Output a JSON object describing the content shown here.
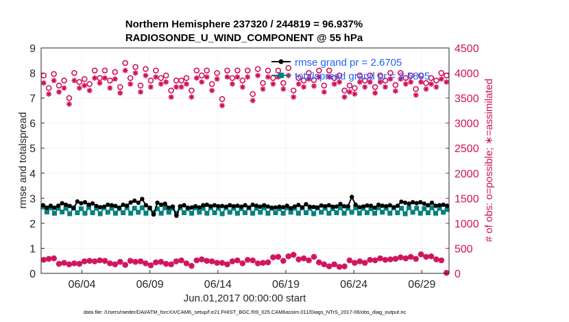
{
  "chart_data": {
    "type": "line",
    "title_line1": "Northern Hemisphere 237320 / 244819 = 96.937%",
    "title_line2": "RADIOSONDE_U_WIND_COMPONENT @ 55 hPa",
    "ylabel_left": "rmse and totalspread",
    "ylabel_right": "# of obs: o=possible; ∗=assimilated",
    "xlabel": "Jun.01,2017 00:00:00 start",
    "footer": "data file: /Users/raeder/DAI/ATM_forcXX/CAM6_setup/f.e21.FHIST_BGC.f09_025.CAM6assim.011/Diags_NTrS_2017-06/obs_diag_output.nc",
    "x_range": [
      1,
      31
    ],
    "ylim_left": [
      0,
      9
    ],
    "ylim_right": [
      0,
      4500
    ],
    "yticks_left": [
      "0",
      "1",
      "2",
      "3",
      "4",
      "5",
      "6",
      "7",
      "8",
      "9"
    ],
    "yticks_right": [
      "0",
      "500",
      "1000",
      "1500",
      "2000",
      "2500",
      "3000",
      "3500",
      "4000",
      "4500"
    ],
    "xticks": [
      {
        "label": "06/04",
        "day": 4
      },
      {
        "label": "06/09",
        "day": 9
      },
      {
        "label": "06/14",
        "day": 14
      },
      {
        "label": "06/19",
        "day": 19
      },
      {
        "label": "06/24",
        "day": 24
      },
      {
        "label": "06/29",
        "day": 29
      }
    ],
    "grid": true,
    "legend_position": "top-right",
    "legend": [
      {
        "name": "rmse grand pr = 2.6705",
        "color": "#000000",
        "marker": "circle"
      },
      {
        "name": "totalspread grand pr = 2.5895",
        "color": "#008080",
        "marker": "square"
      }
    ],
    "colors": {
      "rmse": "#000000",
      "spread": "#008080",
      "obs": "#d0105a",
      "legend_text": "#1f5fff"
    },
    "series": [
      {
        "name": "rmse",
        "values": [
          2.72,
          2.62,
          2.7,
          2.62,
          2.7,
          2.8,
          2.74,
          2.69,
          2.6,
          2.87,
          2.8,
          2.84,
          2.74,
          2.79,
          2.69,
          2.64,
          2.66,
          2.74,
          2.72,
          2.69,
          2.62,
          2.74,
          2.7,
          2.83,
          2.9,
          2.82,
          2.97,
          2.72,
          2.62,
          2.35,
          2.82,
          2.74,
          2.78,
          2.62,
          2.67,
          2.3,
          2.68,
          2.72,
          2.62,
          2.63,
          2.68,
          2.63,
          2.72,
          2.74,
          2.68,
          2.72,
          2.68,
          2.69,
          2.66,
          2.72,
          2.68,
          2.7,
          2.66,
          2.72,
          2.62,
          2.74,
          2.7,
          2.66,
          2.72,
          2.67,
          2.62,
          2.63,
          2.66,
          2.64,
          2.7,
          2.6,
          2.67,
          2.73,
          2.63,
          2.76,
          2.66,
          2.65,
          2.62,
          2.71,
          2.68,
          2.72,
          2.66,
          2.67,
          2.77,
          2.68,
          2.68,
          3.05,
          2.74,
          2.64,
          2.67,
          2.71,
          2.7,
          2.62,
          2.74,
          2.7,
          2.68,
          2.72,
          2.64,
          2.7,
          2.86,
          2.82,
          2.78,
          2.84,
          2.8,
          2.84,
          2.78,
          2.72,
          2.82,
          2.7,
          2.72,
          2.74,
          2.7
        ]
      },
      {
        "name": "totalspread",
        "values": [
          2.65,
          2.45,
          2.62,
          2.4,
          2.6,
          2.45,
          2.6,
          2.38,
          2.62,
          2.42,
          2.58,
          2.4,
          2.63,
          2.42,
          2.6,
          2.38,
          2.62,
          2.44,
          2.6,
          2.4,
          2.58,
          2.42,
          2.62,
          2.4,
          2.6,
          2.44,
          2.62,
          2.4,
          2.6,
          2.42,
          2.58,
          2.4,
          2.62,
          2.44,
          2.6,
          2.4,
          2.62,
          2.42,
          2.58,
          2.4,
          2.62,
          2.44,
          2.6,
          2.4,
          2.62,
          2.42,
          2.6,
          2.38,
          2.62,
          2.44,
          2.6,
          2.4,
          2.58,
          2.42,
          2.62,
          2.4,
          2.6,
          2.44,
          2.62,
          2.4,
          2.6,
          2.42,
          2.58,
          2.4,
          2.62,
          2.44,
          2.6,
          2.4,
          2.62,
          2.42,
          2.6,
          2.38,
          2.62,
          2.44,
          2.6,
          2.4,
          2.58,
          2.42,
          2.62,
          2.4,
          2.6,
          2.44,
          2.62,
          2.4,
          2.6,
          2.42,
          2.58,
          2.4,
          2.62,
          2.44,
          2.6,
          2.4,
          2.62,
          2.42,
          2.6,
          2.38,
          2.62,
          2.44,
          2.6,
          2.4,
          2.58,
          2.42,
          2.62,
          2.4,
          2.6,
          2.44,
          2.55
        ]
      },
      {
        "name": "obs_possible",
        "values": [
          3950,
          3700,
          3980,
          3750,
          3850,
          3500,
          4000,
          3820,
          3880,
          3780,
          4050,
          3900,
          4050,
          3850,
          4020,
          3720,
          4200,
          3900,
          4120,
          3750,
          4080,
          3850,
          4050,
          3900,
          3950,
          3650,
          3850,
          3850,
          3900,
          3650,
          4050,
          3950,
          4050,
          3780,
          4000,
          3480,
          4050,
          3900,
          4050,
          3850,
          4050,
          3580,
          4080,
          3800,
          4050,
          3900,
          4050,
          3800,
          4100,
          3650,
          3900,
          3850,
          4000,
          3860,
          4050,
          3750,
          4050,
          3900,
          3950,
          3650,
          3750,
          3700,
          3950,
          3850,
          3950,
          3720,
          3950,
          3850,
          4000,
          3760,
          4000,
          3900,
          3950,
          3680,
          3950,
          3800,
          3900,
          3850,
          4000,
          3950
        ]
      },
      {
        "name": "obs_assimilated",
        "values": [
          3800,
          3580,
          3850,
          3620,
          3700,
          3380,
          3850,
          3700,
          3750,
          3650,
          3900,
          3800,
          3900,
          3700,
          3880,
          3600,
          4050,
          3780,
          4000,
          3620,
          3950,
          3720,
          3920,
          3780,
          3820,
          3520,
          3720,
          3720,
          3780,
          3520,
          3900,
          3820,
          3920,
          3650,
          3880,
          3350,
          3920,
          3780,
          3920,
          3720,
          3920,
          3450,
          3950,
          3680,
          3920,
          3780,
          3920,
          3680,
          3950,
          3520,
          3780,
          3720,
          3880,
          3740,
          3920,
          3620,
          3920,
          3780,
          3820,
          3520,
          3620,
          3580,
          3820,
          3720,
          3820,
          3600,
          3820,
          3720,
          3880,
          3640,
          3880,
          3780,
          3820,
          3560,
          3820,
          3680,
          3780,
          3720,
          3880,
          3820
        ]
      },
      {
        "name": "obs_bottom",
        "values": [
          270,
          290,
          300,
          190,
          210,
          180,
          200,
          190,
          240,
          250,
          240,
          260,
          250,
          200,
          180,
          230,
          170,
          250,
          230,
          240,
          200,
          160,
          220,
          230,
          190,
          180,
          240,
          260,
          200,
          150,
          260,
          280,
          250,
          240,
          210,
          210,
          180,
          240,
          260,
          200,
          270,
          260,
          200,
          210,
          220,
          320,
          330,
          250,
          340,
          370,
          280,
          300,
          260,
          330,
          220,
          180,
          140,
          180,
          130,
          140,
          260,
          210,
          240,
          210,
          270,
          260,
          300,
          270,
          280,
          290,
          320,
          300,
          330,
          290,
          380,
          330,
          340,
          280,
          260,
          10
        ]
      }
    ]
  }
}
